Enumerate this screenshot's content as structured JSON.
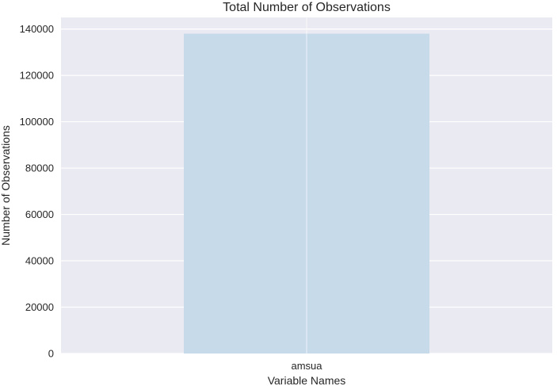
{
  "chart_data": {
    "type": "bar",
    "title": "Total Number of Observations",
    "xlabel": "Variable Names",
    "ylabel": "Number of Observations",
    "categories": [
      "amsua"
    ],
    "values": [
      138000
    ],
    "ylim": [
      0,
      145000
    ],
    "yticks": [
      0,
      20000,
      40000,
      60000,
      80000,
      100000,
      120000,
      140000
    ],
    "ytick_labels": [
      "0",
      "20000",
      "40000",
      "60000",
      "80000",
      "100000",
      "120000",
      "140000"
    ],
    "grid": true,
    "legend": "none"
  },
  "colors": {
    "plot_background": "#EAEAF2",
    "grid": "#FFFFFF",
    "bar": "#C6DAEA",
    "text": "#262626"
  }
}
